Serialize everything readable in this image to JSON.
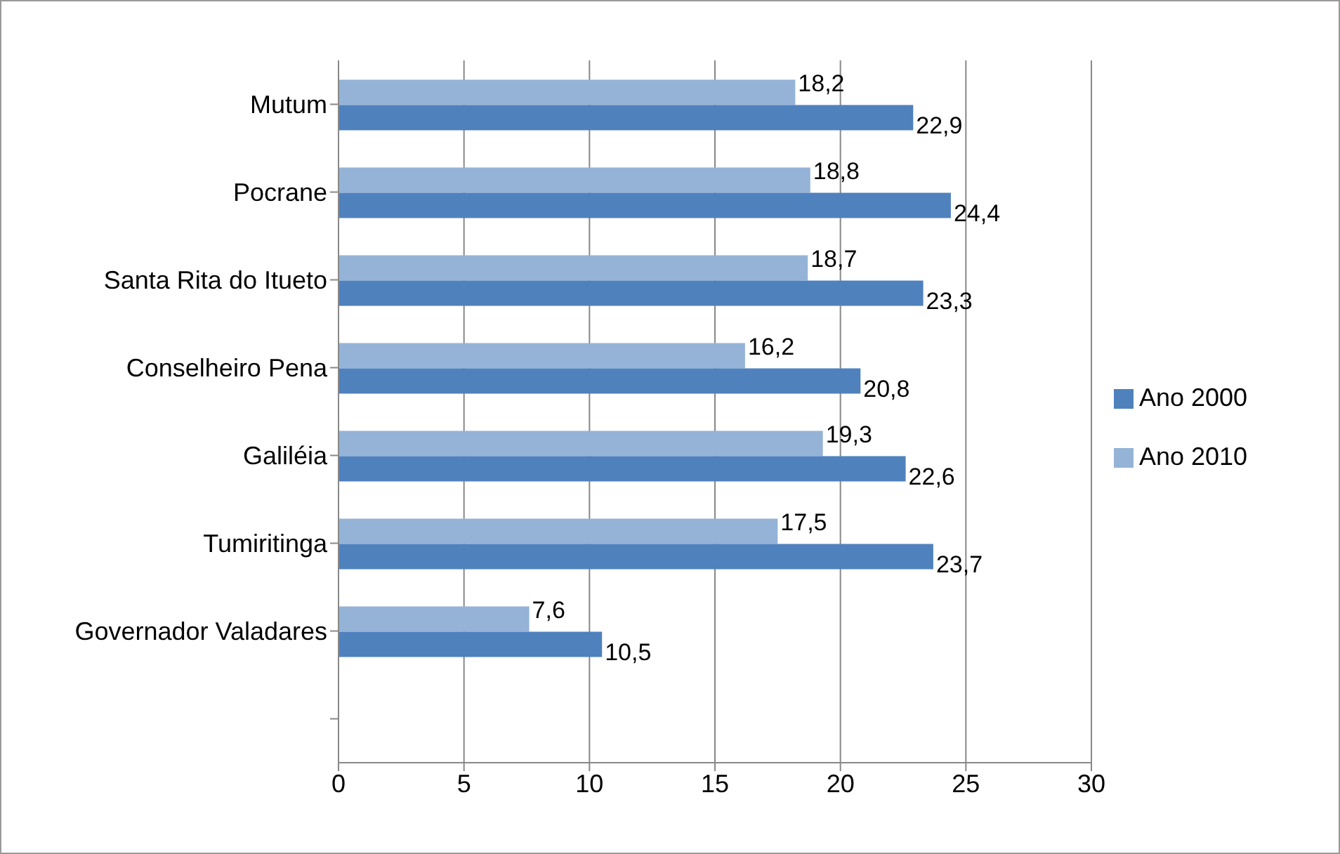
{
  "chart_data": {
    "type": "bar",
    "orientation": "horizontal",
    "categories": [
      "Mutum",
      "Pocrane",
      "Santa Rita do Itueto",
      "Conselheiro Pena",
      "Galiléia",
      "Tumiritinga",
      "Governador Valadares",
      null
    ],
    "series": [
      {
        "name": "Ano 2010",
        "color": "#95b3d7",
        "values": [
          18.2,
          18.8,
          18.7,
          16.2,
          19.3,
          17.5,
          7.6,
          null
        ],
        "value_labels": [
          "18,2",
          "18,8",
          "18,7",
          "16,2",
          "19,3",
          "17,5",
          "7,6",
          null
        ]
      },
      {
        "name": "Ano 2000",
        "color": "#4f81bd",
        "values": [
          22.9,
          24.4,
          23.3,
          20.8,
          22.6,
          23.7,
          10.5,
          null
        ],
        "value_labels": [
          "22,9",
          "24,4",
          "23,3",
          "20,8",
          "22,6",
          "23,7",
          "10,5",
          null
        ]
      }
    ],
    "xlim": [
      0,
      30
    ],
    "xticks": [
      0,
      5,
      10,
      15,
      20,
      25,
      30
    ],
    "grid": "x",
    "legend": "right"
  }
}
